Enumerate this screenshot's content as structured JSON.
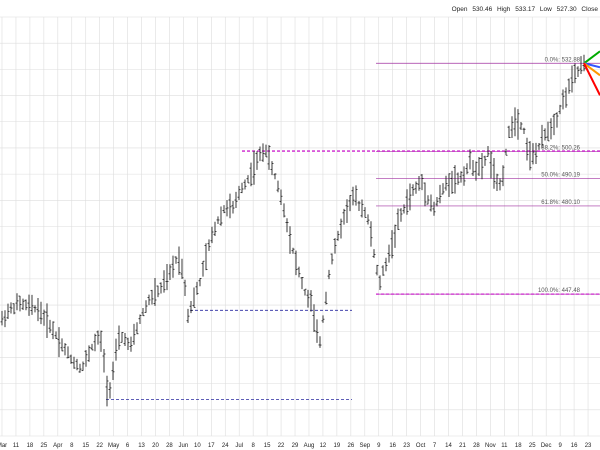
{
  "quote": {
    "open_label": "Open",
    "open": "530.46",
    "high_label": "High",
    "high": "533.17",
    "low_label": "Low",
    "low": "527.30",
    "close_label": "Close"
  },
  "chart_data": {
    "type": "ohlc",
    "x_tick_labels": [
      "Mar",
      "11",
      "18",
      "25",
      "Apr",
      "8",
      "15",
      "22",
      "May",
      "6",
      "13",
      "20",
      "28",
      "Jun",
      "10",
      "17",
      "24",
      "Jul",
      "8",
      "15",
      "22",
      "29",
      "Aug",
      "12",
      "19",
      "26",
      "Sep",
      "9",
      "16",
      "23",
      "Oct",
      "7",
      "14",
      "21",
      "28",
      "Nov",
      "11",
      "18",
      "25",
      "Dec",
      "9",
      "16",
      "23"
    ],
    "ylim": [
      395,
      550
    ],
    "fib_levels": [
      {
        "label": "0.0%: 532.88",
        "value": 532.88
      },
      {
        "label": "38.2%: 500.26",
        "value": 500.26
      },
      {
        "label": "50.0%: 490.19",
        "value": 490.19
      },
      {
        "label": "61.8%: 480.10",
        "value": 480.1
      },
      {
        "label": "100.0%: 447.48",
        "value": 447.48
      }
    ],
    "horizontal_lines": [
      {
        "style": "dashed",
        "color": "#2a2aa0",
        "value": 441.5
      },
      {
        "style": "dashed",
        "color": "#2a2aa0",
        "value": 408.5
      },
      {
        "style": "dashed",
        "color": "#cc22cc",
        "value": 500.4
      }
    ],
    "fan_colors": [
      "#00aa00",
      "#3355ff",
      "#ff9900",
      "#ff0000"
    ],
    "price_anchors": [
      [
        0,
        437
      ],
      [
        8,
        441
      ],
      [
        18,
        444
      ],
      [
        28,
        443
      ],
      [
        38,
        442
      ],
      [
        50,
        436
      ],
      [
        60,
        430
      ],
      [
        72,
        423
      ],
      [
        82,
        420
      ],
      [
        92,
        428
      ],
      [
        100,
        432
      ],
      [
        104,
        423
      ],
      [
        108,
        409
      ],
      [
        112,
        417
      ],
      [
        118,
        430
      ],
      [
        124,
        432
      ],
      [
        130,
        427
      ],
      [
        136,
        434
      ],
      [
        142,
        440
      ],
      [
        150,
        446
      ],
      [
        160,
        449
      ],
      [
        170,
        455
      ],
      [
        178,
        462
      ],
      [
        184,
        454
      ],
      [
        188,
        440
      ],
      [
        194,
        446
      ],
      [
        200,
        452
      ],
      [
        206,
        461
      ],
      [
        212,
        469
      ],
      [
        218,
        475
      ],
      [
        226,
        480
      ],
      [
        234,
        479
      ],
      [
        240,
        486
      ],
      [
        248,
        490
      ],
      [
        256,
        496
      ],
      [
        262,
        500
      ],
      [
        266,
        501
      ],
      [
        270,
        496
      ],
      [
        276,
        490
      ],
      [
        282,
        482
      ],
      [
        288,
        472
      ],
      [
        294,
        462
      ],
      [
        300,
        454
      ],
      [
        306,
        447
      ],
      [
        312,
        444
      ],
      [
        316,
        433
      ],
      [
        320,
        430
      ],
      [
        324,
        441
      ],
      [
        330,
        458
      ],
      [
        336,
        466
      ],
      [
        342,
        474
      ],
      [
        348,
        480
      ],
      [
        354,
        484
      ],
      [
        360,
        480
      ],
      [
        366,
        478
      ],
      [
        372,
        468
      ],
      [
        376,
        457
      ],
      [
        380,
        452
      ],
      [
        386,
        459
      ],
      [
        392,
        466
      ],
      [
        398,
        474
      ],
      [
        404,
        479
      ],
      [
        410,
        484
      ],
      [
        416,
        487
      ],
      [
        422,
        489
      ],
      [
        428,
        483
      ],
      [
        434,
        479
      ],
      [
        440,
        484
      ],
      [
        446,
        488
      ],
      [
        452,
        490
      ],
      [
        458,
        490
      ],
      [
        464,
        492
      ],
      [
        470,
        496
      ],
      [
        476,
        494
      ],
      [
        482,
        494
      ],
      [
        488,
        500
      ],
      [
        494,
        492
      ],
      [
        498,
        486
      ],
      [
        502,
        490
      ],
      [
        506,
        500
      ],
      [
        510,
        509
      ],
      [
        514,
        512
      ],
      [
        520,
        511
      ],
      [
        524,
        508
      ],
      [
        528,
        500
      ],
      [
        532,
        498
      ],
      [
        538,
        501
      ],
      [
        544,
        506
      ],
      [
        550,
        509
      ],
      [
        556,
        512
      ],
      [
        562,
        518
      ],
      [
        568,
        523
      ],
      [
        574,
        528
      ],
      [
        580,
        531
      ],
      [
        584,
        532.5
      ]
    ]
  }
}
